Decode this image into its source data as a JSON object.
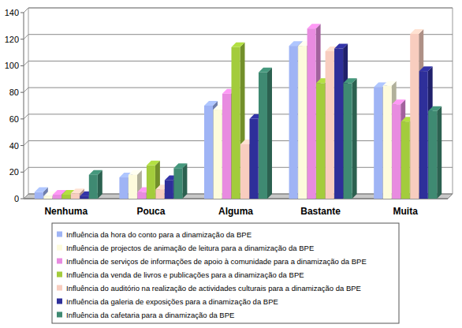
{
  "chart_data": {
    "type": "bar",
    "categories": [
      "Nenhuma",
      "Pouca",
      "Alguma",
      "Bastante",
      "Muita"
    ],
    "series": [
      {
        "name": "Influência da hora do conto para a dinamização da BPE",
        "color": "#9fb4f5",
        "values": [
          5,
          16,
          70,
          115,
          84
        ]
      },
      {
        "name": "Influência de projectos de animação de leitura para a dinamização da BPE",
        "color": "#fdfbdc",
        "values": [
          2,
          18,
          67,
          115,
          85
        ]
      },
      {
        "name": "Influência de serviços de informações de apoio à comunidade para a dinamização da BPE",
        "color": "#e88be0",
        "values": [
          3,
          5,
          79,
          128,
          71
        ]
      },
      {
        "name": "Influência da venda de livros e publicações para a dinamização da BPE",
        "color": "#a3cc3c",
        "values": [
          3,
          25,
          114,
          87,
          58
        ]
      },
      {
        "name": "Influência do auditório na realização de actividades culturais para a dinamização da BPE",
        "color": "#f8cdbf",
        "values": [
          4,
          7,
          41,
          111,
          124
        ]
      },
      {
        "name": "Influência da galeria de exposições para a dinamização da BPE",
        "color": "#2e2f9a",
        "values": [
          2,
          14,
          60,
          113,
          96
        ]
      },
      {
        "name": "Influência da cafetaria para a dinamização da BPE",
        "color": "#3f8a72",
        "values": [
          18,
          23,
          95,
          87,
          66
        ]
      }
    ],
    "ylim": [
      0,
      140
    ],
    "yticks": [
      0,
      20,
      40,
      60,
      80,
      100,
      120,
      140
    ],
    "grid": true,
    "legend": "bottom"
  }
}
